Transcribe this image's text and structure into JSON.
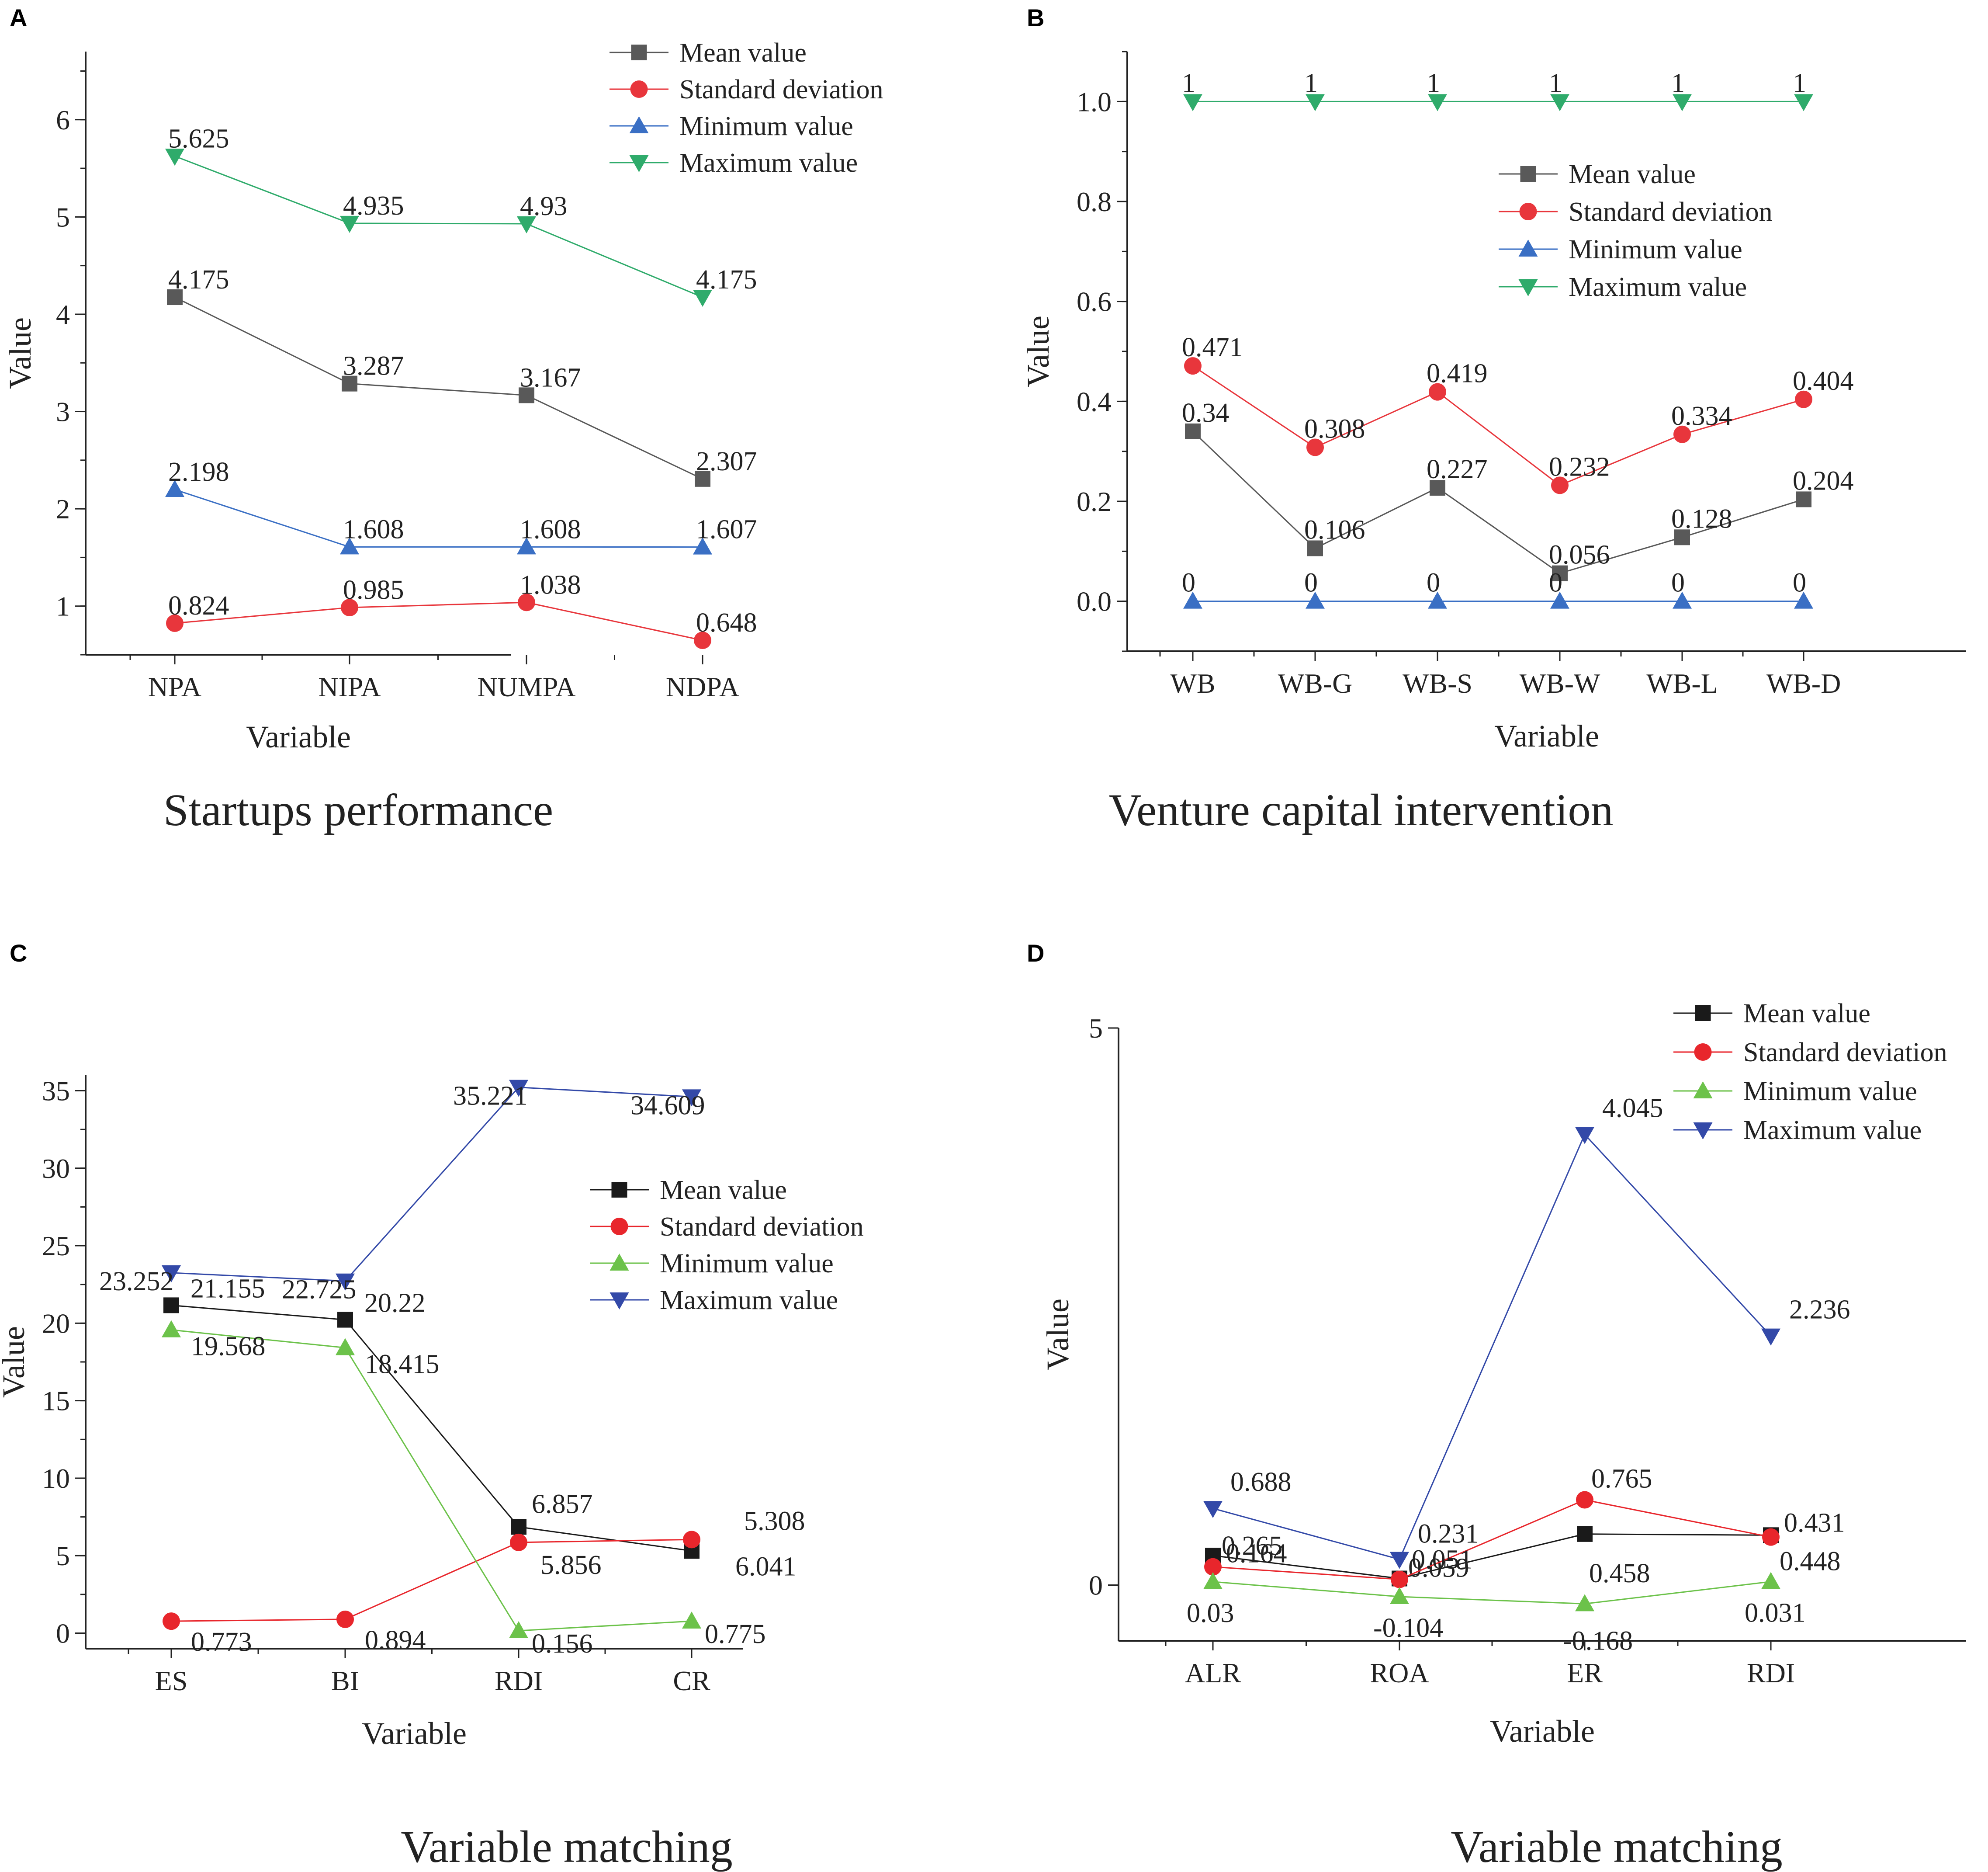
{
  "chart_data": [
    {
      "id": "A",
      "type": "line",
      "panel_label": "A",
      "caption": "Startups performance",
      "xlabel": "Variable",
      "ylabel": "Value",
      "categories": [
        "NPA",
        "NIPA",
        "NUMPA",
        "NDPA"
      ],
      "ylim": [
        0.5,
        6.7
      ],
      "yticks": [
        1,
        2,
        3,
        4,
        5,
        6
      ],
      "ytick_labels": [
        "1",
        "2",
        "3",
        "4",
        "5",
        "6"
      ],
      "legend_position": "top-right",
      "series": [
        {
          "name": "Mean value",
          "color": "#595959",
          "marker": "square",
          "values": [
            4.175,
            3.287,
            3.167,
            2.307
          ],
          "labels": [
            "4.175",
            "3.287",
            "3.167",
            "2.307"
          ]
        },
        {
          "name": "Standard deviation",
          "color": "#e8363c",
          "marker": "circle",
          "values": [
            0.824,
            0.985,
            1.038,
            0.648
          ],
          "labels": [
            "0.824",
            "0.985",
            "1.038",
            "0.648"
          ]
        },
        {
          "name": "Minimum value",
          "color": "#3a6fc4",
          "marker": "triangle-up",
          "values": [
            2.198,
            1.608,
            1.608,
            1.607
          ],
          "labels": [
            "2.198",
            "1.608",
            "1.608",
            "1.607"
          ]
        },
        {
          "name": "Maximum value",
          "color": "#2fab6b",
          "marker": "triangle-down",
          "values": [
            5.625,
            4.935,
            4.93,
            4.175
          ],
          "labels": [
            "5.625",
            "4.935",
            "4.93",
            "4.175"
          ]
        }
      ]
    },
    {
      "id": "B",
      "type": "line",
      "panel_label": "B",
      "caption": "Venture capital intervention",
      "xlabel": "Variable",
      "ylabel": "Value",
      "categories": [
        "WB",
        "WB-G",
        "WB-S",
        "WB-W",
        "WB-L",
        "WB-D"
      ],
      "ylim": [
        -0.1,
        1.1
      ],
      "yticks": [
        0,
        0.2,
        0.4,
        0.6,
        0.8,
        1.0
      ],
      "ytick_labels": [
        "0.0",
        "0.2",
        "0.4",
        "0.6",
        "0.8",
        "1.0"
      ],
      "legend_position": "upper-right",
      "series": [
        {
          "name": "Mean value",
          "color": "#595959",
          "marker": "square",
          "values": [
            0.34,
            0.106,
            0.227,
            0.056,
            0.128,
            0.204
          ],
          "labels": [
            "0.34",
            "0.106",
            "0.227",
            "0.056",
            "0.128",
            "0.204"
          ]
        },
        {
          "name": "Standard deviation",
          "color": "#e8363c",
          "marker": "circle",
          "values": [
            0.471,
            0.308,
            0.419,
            0.232,
            0.334,
            0.404
          ],
          "labels": [
            "0.471",
            "0.308",
            "0.419",
            "0.232",
            "0.334",
            "0.404"
          ]
        },
        {
          "name": "Minimum value",
          "color": "#3a6fc4",
          "marker": "triangle-up",
          "values": [
            0,
            0,
            0,
            0,
            0,
            0
          ],
          "labels": [
            "0",
            "0",
            "0",
            "0",
            "0",
            "0"
          ]
        },
        {
          "name": "Maximum value",
          "color": "#2fab6b",
          "marker": "triangle-down",
          "values": [
            1,
            1,
            1,
            1,
            1,
            1
          ],
          "labels": [
            "1",
            "1",
            "1",
            "1",
            "1",
            "1"
          ]
        }
      ]
    },
    {
      "id": "C",
      "type": "line",
      "panel_label": "C",
      "caption": "Variable matching",
      "xlabel": "Variable",
      "ylabel": "Value",
      "categories": [
        "ES",
        "BI",
        "RDI",
        "CR"
      ],
      "ylim": [
        -1,
        36
      ],
      "yticks": [
        0,
        5,
        10,
        15,
        20,
        25,
        30,
        35
      ],
      "ytick_labels": [
        "0",
        "5",
        "10",
        "15",
        "20",
        "25",
        "30",
        "35"
      ],
      "legend_position": "right",
      "series": [
        {
          "name": "Mean value",
          "color": "#1a1a1a",
          "marker": "square",
          "values": [
            21.155,
            20.22,
            6.857,
            5.308
          ],
          "labels": [
            "21.155",
            "20.22",
            "6.857",
            "5.308"
          ]
        },
        {
          "name": "Standard deviation",
          "color": "#e8262c",
          "marker": "circle",
          "values": [
            0.773,
            0.894,
            5.856,
            6.041
          ],
          "labels": [
            "0.773",
            "0.894",
            "5.856",
            "6.041"
          ]
        },
        {
          "name": "Minimum value",
          "color": "#6cc24a",
          "marker": "triangle-up",
          "values": [
            19.568,
            18.415,
            0.156,
            0.775
          ],
          "labels": [
            "19.568",
            "18.415",
            "0.156",
            "0.775"
          ]
        },
        {
          "name": "Maximum value",
          "color": "#3349a8",
          "marker": "triangle-down",
          "values": [
            23.252,
            22.725,
            35.221,
            34.609
          ],
          "labels": [
            "23.252",
            "22.725",
            "35.221",
            "34.609"
          ]
        }
      ]
    },
    {
      "id": "D",
      "type": "line",
      "panel_label": "D",
      "caption": "Variable matching",
      "xlabel": "Variable",
      "ylabel": "Value",
      "categories": [
        "ALR",
        "ROA",
        "ER",
        "RDI"
      ],
      "ylim": [
        -0.5,
        5
      ],
      "yticks": [
        0,
        5
      ],
      "ytick_labels": [
        "0",
        "5"
      ],
      "legend_position": "top-right",
      "series": [
        {
          "name": "Mean value",
          "color": "#1a1a1a",
          "marker": "square",
          "values": [
            0.265,
            0.059,
            0.458,
            0.448
          ],
          "labels": [
            "0.265",
            "0.059",
            "0.458",
            "0.448"
          ]
        },
        {
          "name": "Standard deviation",
          "color": "#e8262c",
          "marker": "circle",
          "values": [
            0.164,
            0.051,
            0.765,
            0.431
          ],
          "labels": [
            "0.164",
            "0.051",
            "0.765",
            "0.431"
          ]
        },
        {
          "name": "Minimum value",
          "color": "#6cc24a",
          "marker": "triangle-up",
          "values": [
            0.03,
            -0.104,
            -0.168,
            0.031
          ],
          "labels": [
            "0.03",
            "-0.104",
            "-0.168",
            "0.031"
          ]
        },
        {
          "name": "Maximum value",
          "color": "#3349a8",
          "marker": "triangle-down",
          "values": [
            0.688,
            0.231,
            4.045,
            2.236
          ],
          "labels": [
            "0.688",
            "0.231",
            "4.045",
            "2.236"
          ]
        }
      ]
    }
  ]
}
